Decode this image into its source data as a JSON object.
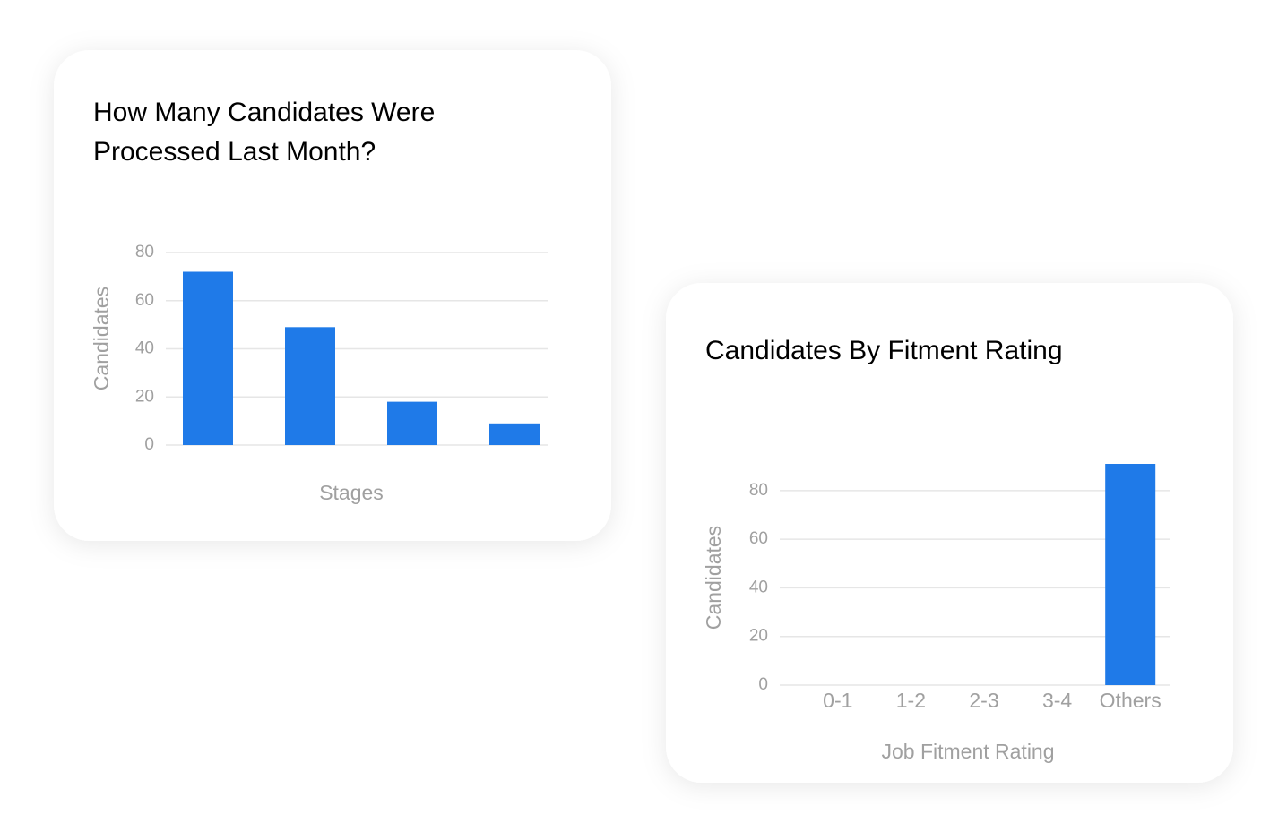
{
  "chart_data": [
    {
      "type": "bar",
      "title": "How Many Candidates Were Processed Last Month?",
      "categories": [
        null,
        null,
        null,
        null
      ],
      "values": [
        72,
        49,
        18,
        9
      ],
      "color": "#1f7ae8",
      "ylim": [
        0,
        80
      ],
      "yticks": [
        0,
        20,
        40,
        60,
        80
      ],
      "grid": true,
      "y_label": "Candidates",
      "x_label": "Stages"
    },
    {
      "type": "bar",
      "title": "Candidates By Fitment Rating",
      "categories": [
        "0-1",
        "1-2",
        "2-3",
        "3-4",
        "Others"
      ],
      "values": [
        0,
        0,
        0,
        0,
        91
      ],
      "color": "#1f7ae8",
      "ylim": [
        0,
        91
      ],
      "yticks": [
        0,
        20,
        40,
        60,
        80
      ],
      "grid": true,
      "y_label": "Candidates",
      "x_label": "Job Fitment Rating"
    }
  ]
}
